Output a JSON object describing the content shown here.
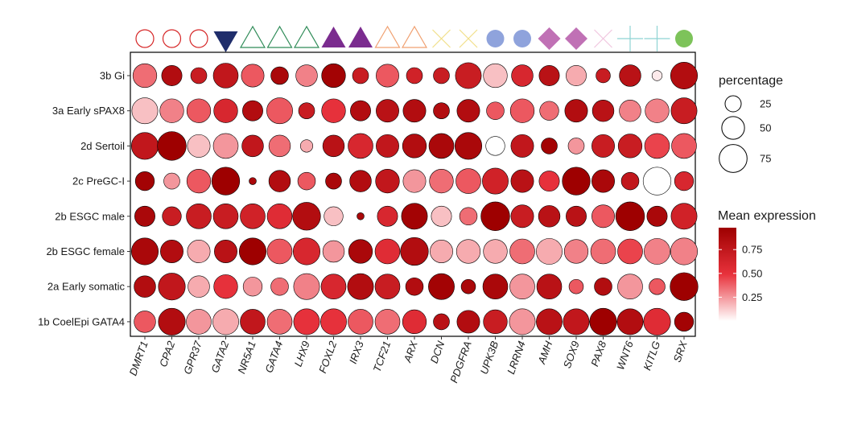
{
  "chart_data": {
    "type": "dotplot",
    "title": "",
    "xlabel": "",
    "ylabel": "",
    "rows": [
      "3b Gi",
      "3a Early sPAX8",
      "2d Sertoil",
      "2c PreGC-I",
      "2b ESGC male",
      "2b ESGC female",
      "2a Early somatic",
      "1b CoelEpi GATA4"
    ],
    "genes": [
      "DMRT1",
      "CPA2",
      "GPR37",
      "GATA2",
      "NR5A1",
      "GATA4",
      "LHX9",
      "FOXL2",
      "IRX3",
      "TCF21",
      "ARX",
      "DCN",
      "PDGFRA",
      "UPK3B",
      "LRRN4",
      "AMH",
      "SOX9",
      "PAX8",
      "WNT6",
      "KITLG",
      "SRX"
    ],
    "gene_markers": [
      {
        "shape": "circle-open",
        "color": "#d62728"
      },
      {
        "shape": "circle-open",
        "color": "#d62728"
      },
      {
        "shape": "circle-open",
        "color": "#d62728"
      },
      {
        "shape": "triangle-down-filled",
        "color": "#1f2d6b"
      },
      {
        "shape": "triangle-open",
        "color": "#2e8b57"
      },
      {
        "shape": "triangle-open",
        "color": "#2e8b57"
      },
      {
        "shape": "triangle-open",
        "color": "#2e8b57"
      },
      {
        "shape": "triangle-filled",
        "color": "#7b2c8f"
      },
      {
        "shape": "triangle-filled",
        "color": "#7b2c8f"
      },
      {
        "shape": "triangle-open",
        "color": "#f0a070"
      },
      {
        "shape": "triangle-open",
        "color": "#f0a070"
      },
      {
        "shape": "cross-x",
        "color": "#f2e08a"
      },
      {
        "shape": "cross-x",
        "color": "#f2e08a"
      },
      {
        "shape": "circle-filled",
        "color": "#8fa3dc"
      },
      {
        "shape": "circle-filled",
        "color": "#8fa3dc"
      },
      {
        "shape": "diamond-filled",
        "color": "#c071b5"
      },
      {
        "shape": "diamond-filled",
        "color": "#c071b5"
      },
      {
        "shape": "cross-x",
        "color": "#f0c8e0"
      },
      {
        "shape": "plus",
        "color": "#8ed3d3"
      },
      {
        "shape": "plus",
        "color": "#8ed3d3"
      },
      {
        "shape": "circle-filled",
        "color": "#7dc35a"
      }
    ],
    "percentage": [
      [
        55,
        40,
        25,
        60,
        50,
        30,
        45,
        55,
        25,
        50,
        25,
        25,
        65,
        55,
        45,
        40,
        40,
        20,
        45,
        10,
        70
      ],
      [
        65,
        55,
        55,
        55,
        40,
        65,
        25,
        55,
        40,
        50,
        50,
        25,
        50,
        30,
        55,
        35,
        50,
        45,
        45,
        55,
        65
      ],
      [
        70,
        80,
        50,
        60,
        45,
        45,
        15,
        45,
        60,
        50,
        55,
        60,
        70,
        35,
        50,
        25,
        25,
        50,
        55,
        60,
        60
      ],
      [
        35,
        25,
        55,
        75,
        5,
        45,
        30,
        25,
        45,
        55,
        50,
        55,
        60,
        65,
        50,
        40,
        75,
        50,
        30,
        75,
        35
      ],
      [
        40,
        35,
        60,
        60,
        60,
        60,
        75,
        35,
        5,
        40,
        65,
        40,
        30,
        80,
        50,
        45,
        40,
        50,
        80,
        40,
        65
      ],
      [
        70,
        50,
        50,
        50,
        70,
        60,
        70,
        45,
        55,
        60,
        75,
        50,
        55,
        55,
        60,
        65,
        55,
        60,
        60,
        65,
        70
      ],
      [
        45,
        70,
        45,
        55,
        35,
        30,
        65,
        60,
        65,
        60,
        30,
        65,
        20,
        60,
        60,
        60,
        20,
        30,
        60,
        25,
        75
      ],
      [
        45,
        70,
        60,
        65,
        60,
        60,
        65,
        65,
        60,
        60,
        55,
        25,
        50,
        55,
        65,
        65,
        65,
        70,
        65,
        70,
        35
      ]
    ],
    "mean_expression": [
      [
        0.35,
        0.85,
        0.7,
        0.75,
        0.4,
        0.9,
        0.3,
        0.95,
        0.7,
        0.4,
        0.65,
        0.7,
        0.7,
        0.15,
        0.6,
        0.8,
        0.2,
        0.7,
        0.8,
        0.05,
        0.85
      ],
      [
        0.15,
        0.3,
        0.4,
        0.6,
        0.85,
        0.4,
        0.7,
        0.5,
        0.85,
        0.8,
        0.85,
        0.85,
        0.85,
        0.4,
        0.4,
        0.35,
        0.85,
        0.8,
        0.3,
        0.3,
        0.7
      ],
      [
        0.75,
        0.98,
        0.15,
        0.25,
        0.75,
        0.35,
        0.2,
        0.8,
        0.6,
        0.75,
        0.85,
        0.9,
        0.9,
        0.0,
        0.75,
        0.95,
        0.25,
        0.7,
        0.7,
        0.45,
        0.4
      ],
      [
        0.95,
        0.25,
        0.4,
        0.98,
        0.9,
        0.85,
        0.4,
        0.9,
        0.85,
        0.75,
        0.25,
        0.35,
        0.4,
        0.65,
        0.8,
        0.5,
        0.98,
        0.9,
        0.75,
        0.0,
        0.6
      ],
      [
        0.9,
        0.7,
        0.7,
        0.7,
        0.65,
        0.55,
        0.85,
        0.15,
        0.9,
        0.6,
        0.95,
        0.15,
        0.35,
        0.98,
        0.7,
        0.8,
        0.8,
        0.4,
        0.98,
        0.9,
        0.65
      ],
      [
        0.9,
        0.85,
        0.2,
        0.8,
        0.98,
        0.4,
        0.6,
        0.25,
        0.9,
        0.55,
        0.85,
        0.2,
        0.2,
        0.2,
        0.35,
        0.2,
        0.3,
        0.35,
        0.45,
        0.3,
        0.3
      ],
      [
        0.85,
        0.75,
        0.2,
        0.5,
        0.25,
        0.35,
        0.3,
        0.6,
        0.85,
        0.7,
        0.85,
        0.95,
        0.9,
        0.9,
        0.25,
        0.8,
        0.4,
        0.85,
        0.25,
        0.4,
        0.98
      ],
      [
        0.4,
        0.85,
        0.25,
        0.2,
        0.75,
        0.35,
        0.5,
        0.5,
        0.4,
        0.35,
        0.55,
        0.8,
        0.85,
        0.7,
        0.25,
        0.8,
        0.75,
        0.98,
        0.85,
        0.55,
        0.95
      ]
    ],
    "legend_percentage": {
      "title": "percentage",
      "values": [
        25,
        50,
        75
      ],
      "labels": [
        "25",
        "50",
        "75"
      ]
    },
    "legend_color": {
      "title": "Mean expression",
      "range": [
        0.0,
        0.98
      ],
      "ticks": [
        0.25,
        0.5,
        0.75
      ],
      "tick_labels": [
        "0.25",
        "0.50",
        "0.75"
      ],
      "low_color": "#ffffff",
      "mid_color": "#e8323c",
      "high_color": "#9e0000"
    }
  }
}
